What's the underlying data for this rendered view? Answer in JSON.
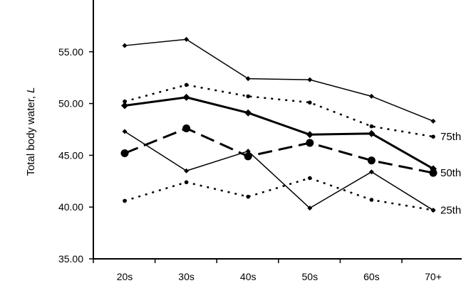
{
  "chart_data": {
    "type": "line",
    "title": "",
    "xlabel": "",
    "ylabel": "Total body water, ",
    "ylabel_italic": "L",
    "categories": [
      "20s",
      "30s",
      "40s",
      "50s",
      "60s",
      "70+"
    ],
    "ylim": [
      35,
      60
    ],
    "yticks": [
      "35.00",
      "40.00",
      "45.00",
      "50.00",
      "55.00"
    ],
    "grid": false,
    "series": [
      {
        "group": "A",
        "name": "75th",
        "style": "solid-thin",
        "marker": "small-diamond",
        "values": [
          55.6,
          56.2,
          52.4,
          52.3,
          50.7,
          48.3
        ]
      },
      {
        "group": "A",
        "name": "50th",
        "style": "solid-thick",
        "marker": "diamond",
        "values": [
          49.8,
          50.6,
          49.1,
          47.0,
          47.1,
          43.7
        ]
      },
      {
        "group": "A",
        "name": "25th",
        "style": "solid-thin",
        "marker": "small-diamond",
        "values": [
          47.3,
          43.5,
          45.4,
          39.9,
          43.4,
          39.7
        ]
      },
      {
        "group": "B",
        "name": "75th",
        "style": "dotted",
        "marker": "small-dot",
        "values": [
          50.2,
          51.8,
          50.7,
          50.1,
          47.8,
          46.8
        ]
      },
      {
        "group": "B",
        "name": "50th",
        "style": "dashed",
        "marker": "large-dot",
        "values": [
          45.2,
          47.6,
          44.9,
          46.2,
          44.5,
          43.3
        ]
      },
      {
        "group": "B",
        "name": "25th",
        "style": "dotted",
        "marker": "small-dot",
        "values": [
          40.6,
          42.4,
          41.0,
          42.8,
          40.7,
          39.7
        ]
      }
    ],
    "end_labels": [
      {
        "text": "75th",
        "y": 46.8
      },
      {
        "text": "50th",
        "y": 43.3
      },
      {
        "text": "25th",
        "y": 39.7
      }
    ]
  }
}
